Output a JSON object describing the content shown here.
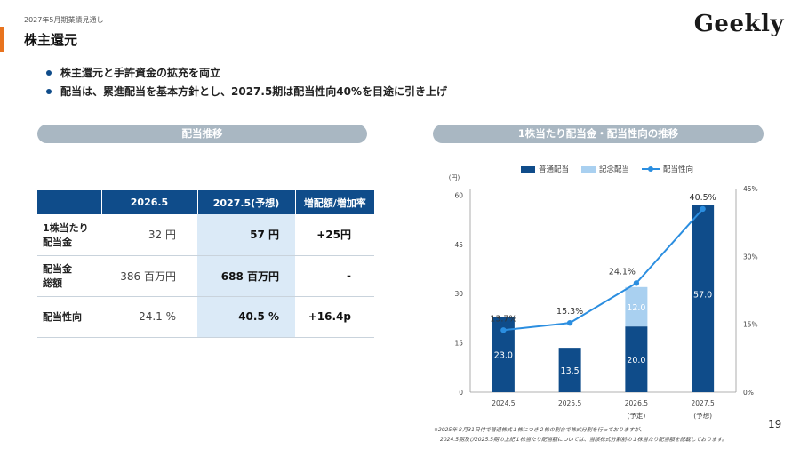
{
  "header": {
    "subtitle": "2027年5月期業績見通し",
    "title": "株主還元",
    "logo": "Geekly"
  },
  "bullets": [
    "株主還元と手許資金の拡充を両立",
    "配当は、累進配当を基本方針とし、2027.5期は配当性向40%を目途に引き上げ"
  ],
  "left_panel": {
    "heading": "配当推移",
    "table": {
      "headers": [
        "",
        "2026.5",
        "2027.5(予想)",
        "増配額/増加率"
      ],
      "rows": [
        {
          "label_line1": "1株当たり",
          "label_line2": "配当金",
          "v2026": "32 円",
          "v2027": "57 円",
          "change": "+25円"
        },
        {
          "label_line1": "配当金",
          "label_line2": "総額",
          "v2026": "386 百万円",
          "v2027": "688 百万円",
          "change": "-"
        },
        {
          "label_line1": "配当性向",
          "label_line2": "",
          "v2026": "24.1 %",
          "v2027": "40.5 %",
          "change": "+16.4p"
        }
      ]
    }
  },
  "right_panel": {
    "heading": "1株当たり配当金・配当性向の推移"
  },
  "chart_data": {
    "type": "bar",
    "categories": [
      "2024.5",
      "2025.5",
      "2026.5",
      "2027.5"
    ],
    "category_sublabels": [
      "",
      "",
      "(予定)",
      "(予想)"
    ],
    "series": [
      {
        "name": "普通配当",
        "type": "bar",
        "values": [
          23.0,
          13.5,
          20.0,
          57.0
        ],
        "color": "#0f4c8a"
      },
      {
        "name": "記念配当",
        "type": "bar",
        "values": [
          0,
          0,
          12.0,
          0
        ],
        "color": "#a9d0f0"
      },
      {
        "name": "配当性向",
        "type": "line",
        "axis": "right",
        "values": [
          13.7,
          15.3,
          24.1,
          40.5
        ],
        "color": "#2b8ee0"
      }
    ],
    "bar_labels": [
      [
        "23.0",
        "13.5",
        "20.0",
        "57.0"
      ],
      [
        "",
        "",
        "12.0",
        ""
      ]
    ],
    "line_labels": [
      "13.7%",
      "15.3%",
      "24.1%",
      "40.5%"
    ],
    "left_axis": {
      "unit": "(円)",
      "ticks": [
        "0",
        "15",
        "30",
        "45",
        "60"
      ],
      "ylim": [
        0,
        62
      ]
    },
    "right_axis": {
      "ticks": [
        "0%",
        "15%",
        "30%",
        "45%"
      ],
      "ylim": [
        0,
        45
      ]
    },
    "legend_position": "top"
  },
  "footnote": {
    "line1": "※2025年８月31日付で普通株式１株につき２株の割合で株式分割を行っておりますが、",
    "line2": "2024.5期及び2025.5期の上記１株当たり配当額については、当該株式分割前の１株当たり配当額を記載しております。"
  },
  "page_number": "19"
}
